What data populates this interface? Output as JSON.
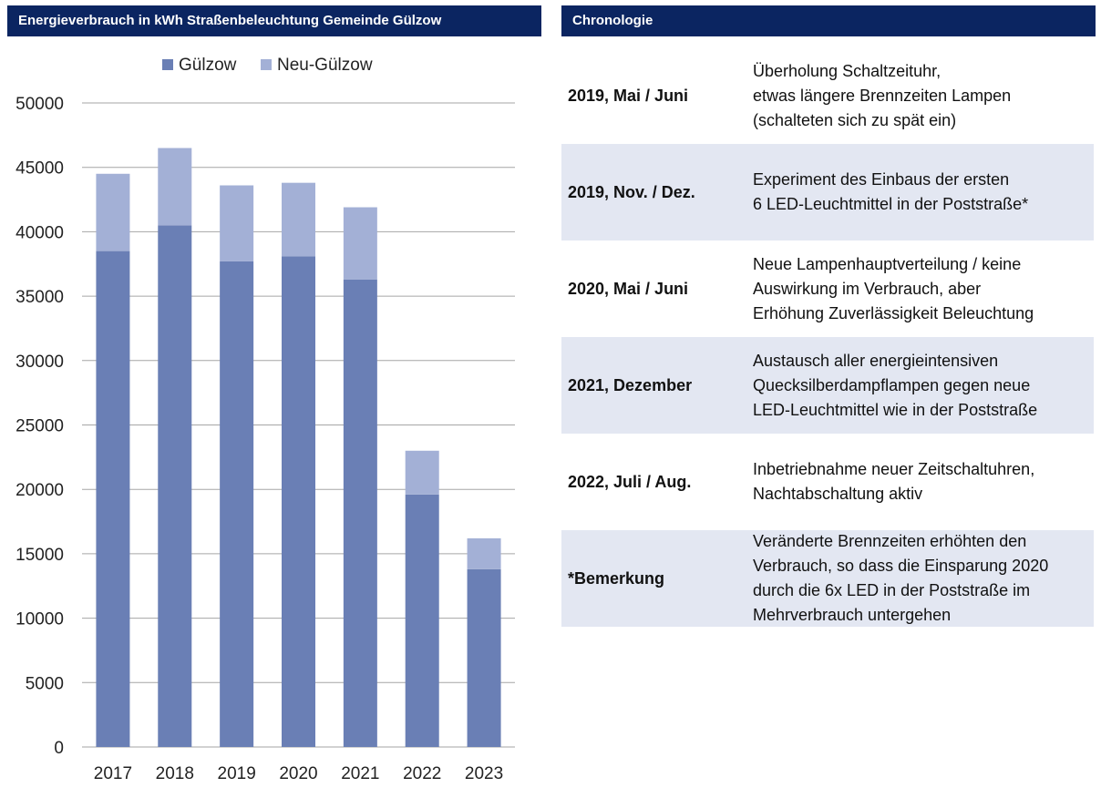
{
  "chart_header": "Energieverbrauch in kWh Straßenbeleuchtung Gemeinde Gülzow",
  "chronology_header": "Chronologie",
  "chart_data": {
    "type": "bar",
    "stacked": true,
    "title": "Energieverbrauch in kWh Straßenbeleuchtung Gemeinde Gülzow",
    "categories": [
      "2017",
      "2018",
      "2019",
      "2020",
      "2021",
      "2022",
      "2023"
    ],
    "series": [
      {
        "name": "Gülzow",
        "color": "#6a7fb5",
        "values": [
          38500,
          40500,
          37700,
          38100,
          36300,
          19600,
          13800
        ]
      },
      {
        "name": "Neu-Gülzow",
        "color": "#a3b0d6",
        "values": [
          6000,
          6000,
          5900,
          5700,
          5600,
          3400,
          2400
        ]
      }
    ],
    "ylim": [
      0,
      50000
    ],
    "yticks": [
      0,
      5000,
      10000,
      15000,
      20000,
      25000,
      30000,
      35000,
      40000,
      45000,
      50000
    ],
    "grid": true,
    "legend": "top-center",
    "xlabel": "",
    "ylabel": ""
  },
  "chronology": [
    {
      "date": "2019, Mai / Juni",
      "text": "Überholung Schaltzeituhr,\netwas längere Brennzeiten Lampen\n(schalteten sich zu spät ein)",
      "shaded": false
    },
    {
      "date": "2019, Nov. / Dez.",
      "text": "Experiment des Einbaus der ersten\n6 LED-Leuchtmittel in der Poststraße*",
      "shaded": true
    },
    {
      "date": "2020, Mai / Juni",
      "text": "Neue Lampenhauptverteilung / keine\nAuswirkung im Verbrauch, aber\nErhöhung Zuverlässigkeit Beleuchtung",
      "shaded": false
    },
    {
      "date": "2021, Dezember",
      "text": "Austausch aller energieintensiven\nQuecksilberdampflampen gegen neue\nLED-Leuchtmittel wie in der Poststraße",
      "shaded": true
    },
    {
      "date": "2022, Juli / Aug.",
      "text": "Inbetriebnahme neuer Zeitschaltuhren,\nNachtabschaltung aktiv",
      "shaded": false
    },
    {
      "date": "*Bemerkung",
      "text": "Veränderte Brennzeiten erhöhten den\nVerbrauch, so dass die Einsparung 2020\ndurch die 6x LED in der Poststraße im\nMehrverbrauch untergehen",
      "shaded": true
    }
  ]
}
